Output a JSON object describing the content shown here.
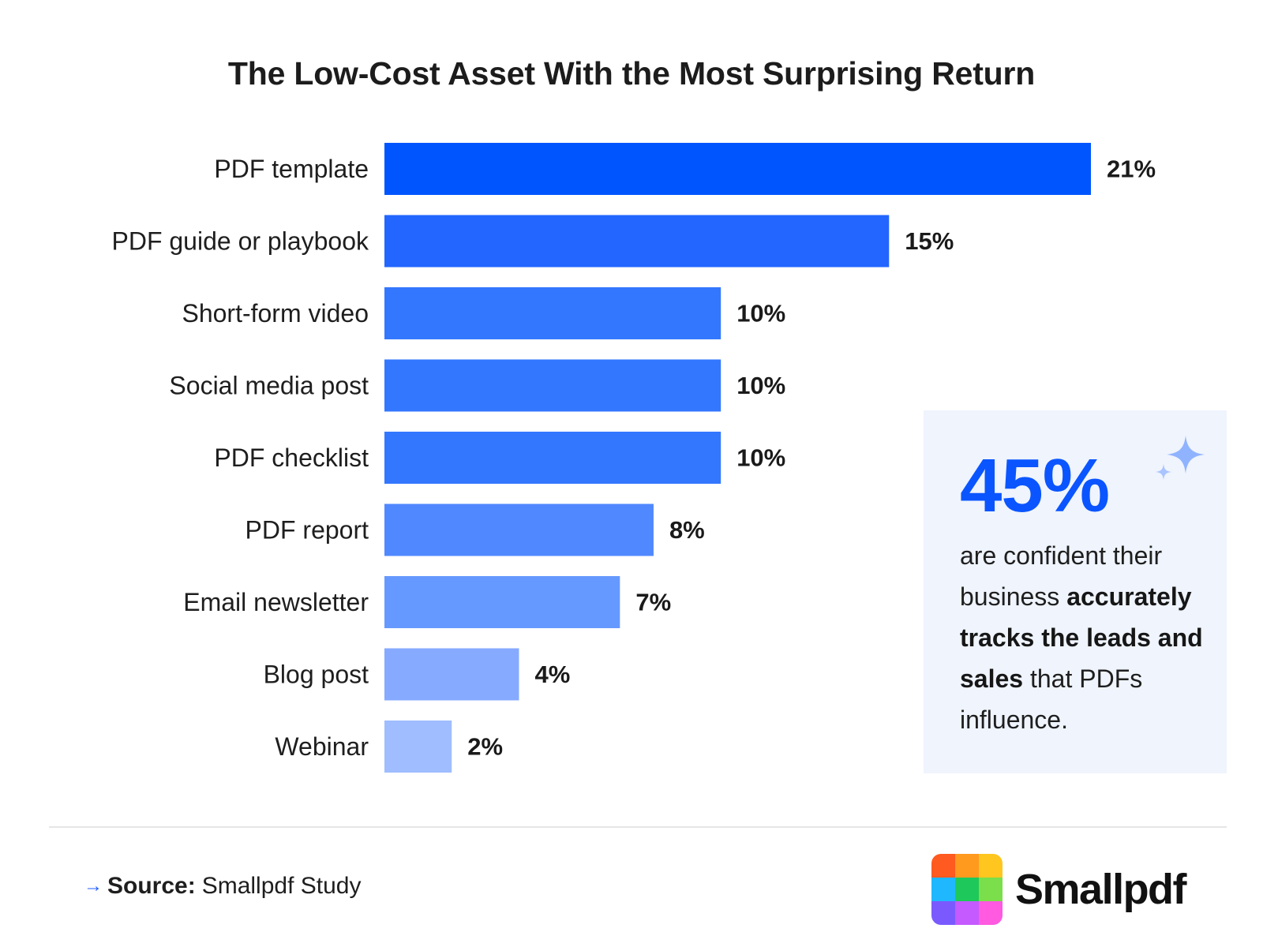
{
  "chart_data": {
    "type": "bar",
    "orientation": "horizontal",
    "title": "The Low-Cost Asset With the Most Surprising Return",
    "categories": [
      "PDF template",
      "PDF guide or playbook",
      "Short-form video",
      "Social media post",
      "PDF checklist",
      "PDF report",
      "Email newsletter",
      "Blog post",
      "Webinar"
    ],
    "values": [
      21,
      15,
      10,
      10,
      10,
      8,
      7,
      4,
      2
    ],
    "value_labels": [
      "21%",
      "15%",
      "10%",
      "10%",
      "10%",
      "8%",
      "7%",
      "4%",
      "2%"
    ],
    "bar_colors": [
      "#0055ff",
      "#2266ff",
      "#3377ff",
      "#3377ff",
      "#3377ff",
      "#5088ff",
      "#6699ff",
      "#85aaff",
      "#9fbdff"
    ],
    "xlim": [
      0,
      21
    ],
    "grid": false,
    "legend": "none"
  },
  "callout": {
    "stat": "45%",
    "text_1": "are confident their business ",
    "text_bold_1": "accurately tracks the leads and sales",
    "text_2": " that PDFs influence.",
    "background": "#eff4fd",
    "stat_color": "#0a55ff",
    "icon": "sparkle-icon"
  },
  "footer": {
    "source_label": "Source:",
    "source_text": "Smallpdf Study",
    "arrow_icon": "arrow-right-icon"
  },
  "brand": {
    "name": "Smallpdf",
    "logo_colors": [
      "#ff5a1f",
      "#ff9a1f",
      "#ffc61f",
      "#1fb8ff",
      "#1fc85a",
      "#7adf4a",
      "#7a5aff",
      "#c45aff",
      "#ff5ae0"
    ]
  }
}
